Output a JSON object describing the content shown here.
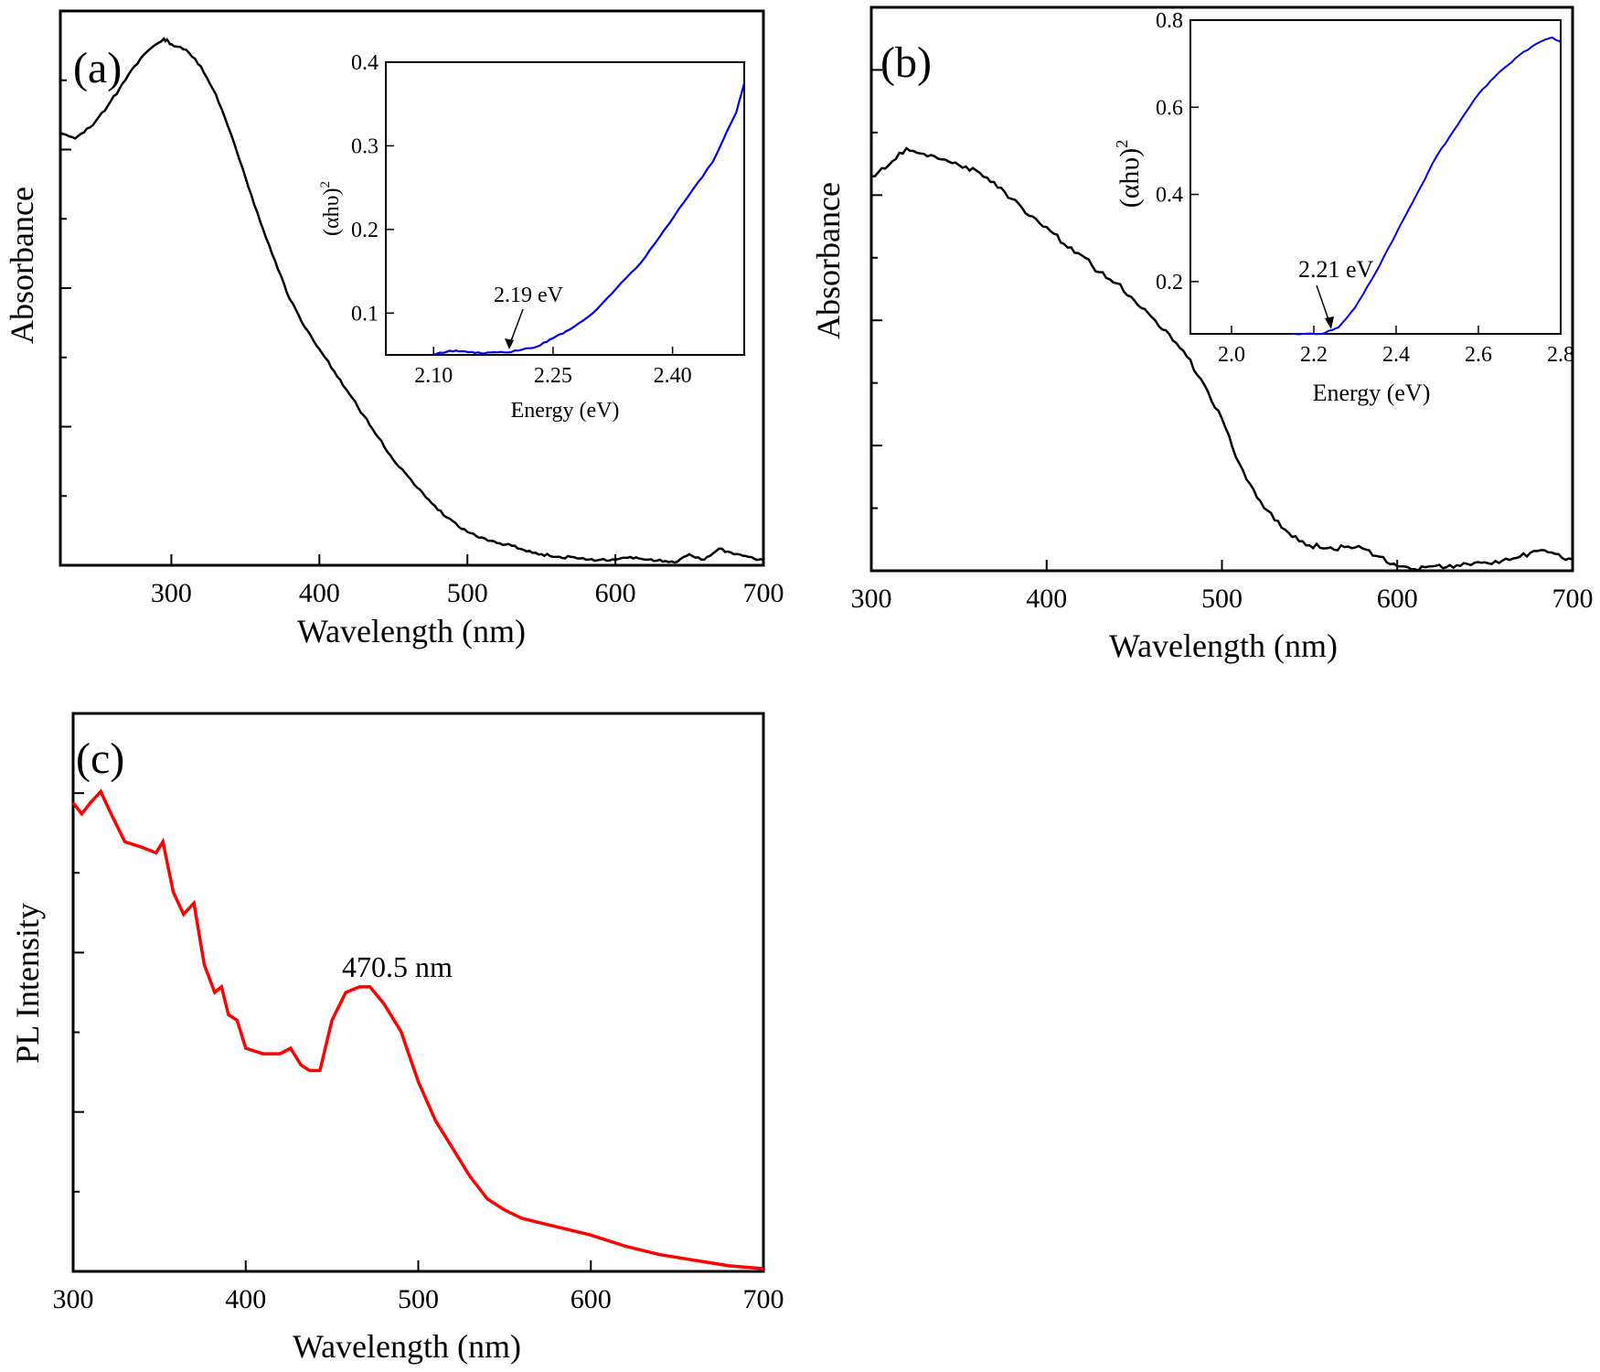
{
  "chart_data": [
    {
      "panel": "(a)",
      "type": "line",
      "xlabel": "Wavelength (nm)",
      "ylabel": "Absorbance",
      "xlim": [
        225,
        700
      ],
      "ylim": [
        0,
        1
      ],
      "xticks": [
        300,
        400,
        500,
        600,
        700
      ],
      "color": "#000000",
      "x": [
        225,
        235,
        245,
        255,
        265,
        275,
        285,
        295,
        300,
        310,
        320,
        330,
        340,
        350,
        360,
        370,
        380,
        390,
        400,
        410,
        420,
        430,
        440,
        450,
        460,
        470,
        480,
        490,
        500,
        510,
        520,
        530,
        540,
        550,
        560,
        570,
        580,
        590,
        600,
        610,
        620,
        630,
        640,
        650,
        660,
        670,
        680,
        690,
        700
      ],
      "y": [
        0.78,
        0.77,
        0.79,
        0.82,
        0.86,
        0.9,
        0.93,
        0.95,
        0.94,
        0.93,
        0.9,
        0.85,
        0.78,
        0.7,
        0.62,
        0.55,
        0.48,
        0.43,
        0.39,
        0.35,
        0.31,
        0.27,
        0.23,
        0.19,
        0.16,
        0.13,
        0.1,
        0.08,
        0.06,
        0.05,
        0.04,
        0.035,
        0.025,
        0.02,
        0.015,
        0.015,
        0.01,
        0.01,
        0.01,
        0.015,
        0.01,
        0.01,
        0.005,
        0.02,
        0.01,
        0.03,
        0.02,
        0.015,
        0.01
      ],
      "inset": {
        "type": "line",
        "xlabel": "Energy (eV)",
        "ylabel": "(αhυ)",
        "ylabel_sup": "2",
        "xlim": [
          2.04,
          2.49
        ],
        "ylim": [
          0.05,
          0.4
        ],
        "xticks": [
          "2.10",
          "2.25",
          "2.40"
        ],
        "yticks": [
          "0.1",
          "0.2",
          "0.3",
          "0.4"
        ],
        "color": "#0000ee",
        "x": [
          2.1,
          2.12,
          2.14,
          2.16,
          2.18,
          2.19,
          2.21,
          2.23,
          2.25,
          2.27,
          2.3,
          2.33,
          2.36,
          2.39,
          2.42,
          2.45,
          2.48,
          2.49
        ],
        "y": [
          0.05,
          0.055,
          0.054,
          0.052,
          0.053,
          0.053,
          0.056,
          0.06,
          0.07,
          0.08,
          0.1,
          0.13,
          0.16,
          0.2,
          0.24,
          0.28,
          0.34,
          0.375
        ],
        "annotation": {
          "text": "2.19 eV",
          "x": 2.19,
          "y": 0.053
        }
      }
    },
    {
      "panel": "(b)",
      "type": "line",
      "xlabel": "Wavelength (nm)",
      "ylabel": "Absorbance",
      "xlim": [
        300,
        700
      ],
      "ylim": [
        0,
        1
      ],
      "xticks": [
        300,
        400,
        500,
        600,
        700
      ],
      "color": "#000000",
      "x": [
        300,
        310,
        320,
        330,
        340,
        350,
        360,
        370,
        380,
        390,
        400,
        410,
        420,
        430,
        440,
        450,
        460,
        470,
        480,
        490,
        500,
        510,
        520,
        530,
        540,
        550,
        560,
        570,
        580,
        590,
        600,
        610,
        620,
        630,
        640,
        650,
        660,
        670,
        680,
        690,
        700
      ],
      "y": [
        0.7,
        0.72,
        0.75,
        0.74,
        0.73,
        0.72,
        0.71,
        0.69,
        0.66,
        0.63,
        0.61,
        0.58,
        0.56,
        0.53,
        0.51,
        0.48,
        0.45,
        0.42,
        0.38,
        0.33,
        0.27,
        0.19,
        0.13,
        0.09,
        0.06,
        0.045,
        0.04,
        0.042,
        0.04,
        0.025,
        0.008,
        0.003,
        0.008,
        0.01,
        0.012,
        0.015,
        0.018,
        0.025,
        0.035,
        0.03,
        0.02
      ],
      "inset": {
        "type": "line",
        "xlabel": "Energy (eV)",
        "ylabel": "(αhυ)",
        "ylabel_sup": "2",
        "xlim": [
          1.9,
          2.8
        ],
        "ylim": [
          0.08,
          0.8
        ],
        "xticks": [
          "2.0",
          "2.2",
          "2.4",
          "2.6",
          "2.8"
        ],
        "yticks": [
          "0.2",
          "0.4",
          "0.6",
          "0.8"
        ],
        "color": "#0000ee",
        "x": [
          2.15,
          2.22,
          2.26,
          2.3,
          2.35,
          2.4,
          2.45,
          2.5,
          2.55,
          2.6,
          2.65,
          2.7,
          2.75,
          2.78,
          2.8
        ],
        "y": [
          0.08,
          0.08,
          0.095,
          0.14,
          0.22,
          0.31,
          0.4,
          0.49,
          0.56,
          0.63,
          0.68,
          0.72,
          0.75,
          0.76,
          0.75
        ],
        "annotation": {
          "text": "2.21 eV",
          "x": 2.23,
          "y": 0.085
        }
      }
    },
    {
      "panel": "(c)",
      "type": "line",
      "xlabel": "Wavelength (nm)",
      "ylabel": "PL Intensity",
      "xlim": [
        300,
        700
      ],
      "ylim": [
        0,
        1
      ],
      "xticks": [
        300,
        400,
        500,
        600,
        700
      ],
      "color": "#ff0000",
      "x": [
        300,
        305,
        310,
        316,
        322,
        330,
        340,
        348,
        352,
        358,
        364,
        370,
        376,
        382,
        386,
        390,
        395,
        400,
        410,
        420,
        426,
        432,
        437,
        443,
        450,
        458,
        466,
        472,
        480,
        490,
        500,
        510,
        520,
        530,
        540,
        550,
        560,
        580,
        600,
        620,
        640,
        660,
        680,
        700
      ],
      "y": [
        0.84,
        0.82,
        0.84,
        0.86,
        0.82,
        0.77,
        0.76,
        0.75,
        0.77,
        0.68,
        0.64,
        0.66,
        0.55,
        0.5,
        0.51,
        0.46,
        0.45,
        0.4,
        0.39,
        0.39,
        0.4,
        0.37,
        0.36,
        0.36,
        0.45,
        0.5,
        0.51,
        0.51,
        0.48,
        0.43,
        0.34,
        0.27,
        0.22,
        0.17,
        0.13,
        0.11,
        0.095,
        0.08,
        0.065,
        0.045,
        0.03,
        0.02,
        0.01,
        0.005
      ],
      "annotation": {
        "text": "470.5 nm",
        "x": 470.5,
        "y": 0.51
      }
    }
  ],
  "panel_labels": [
    "(a)",
    "(b)",
    "(c)"
  ]
}
